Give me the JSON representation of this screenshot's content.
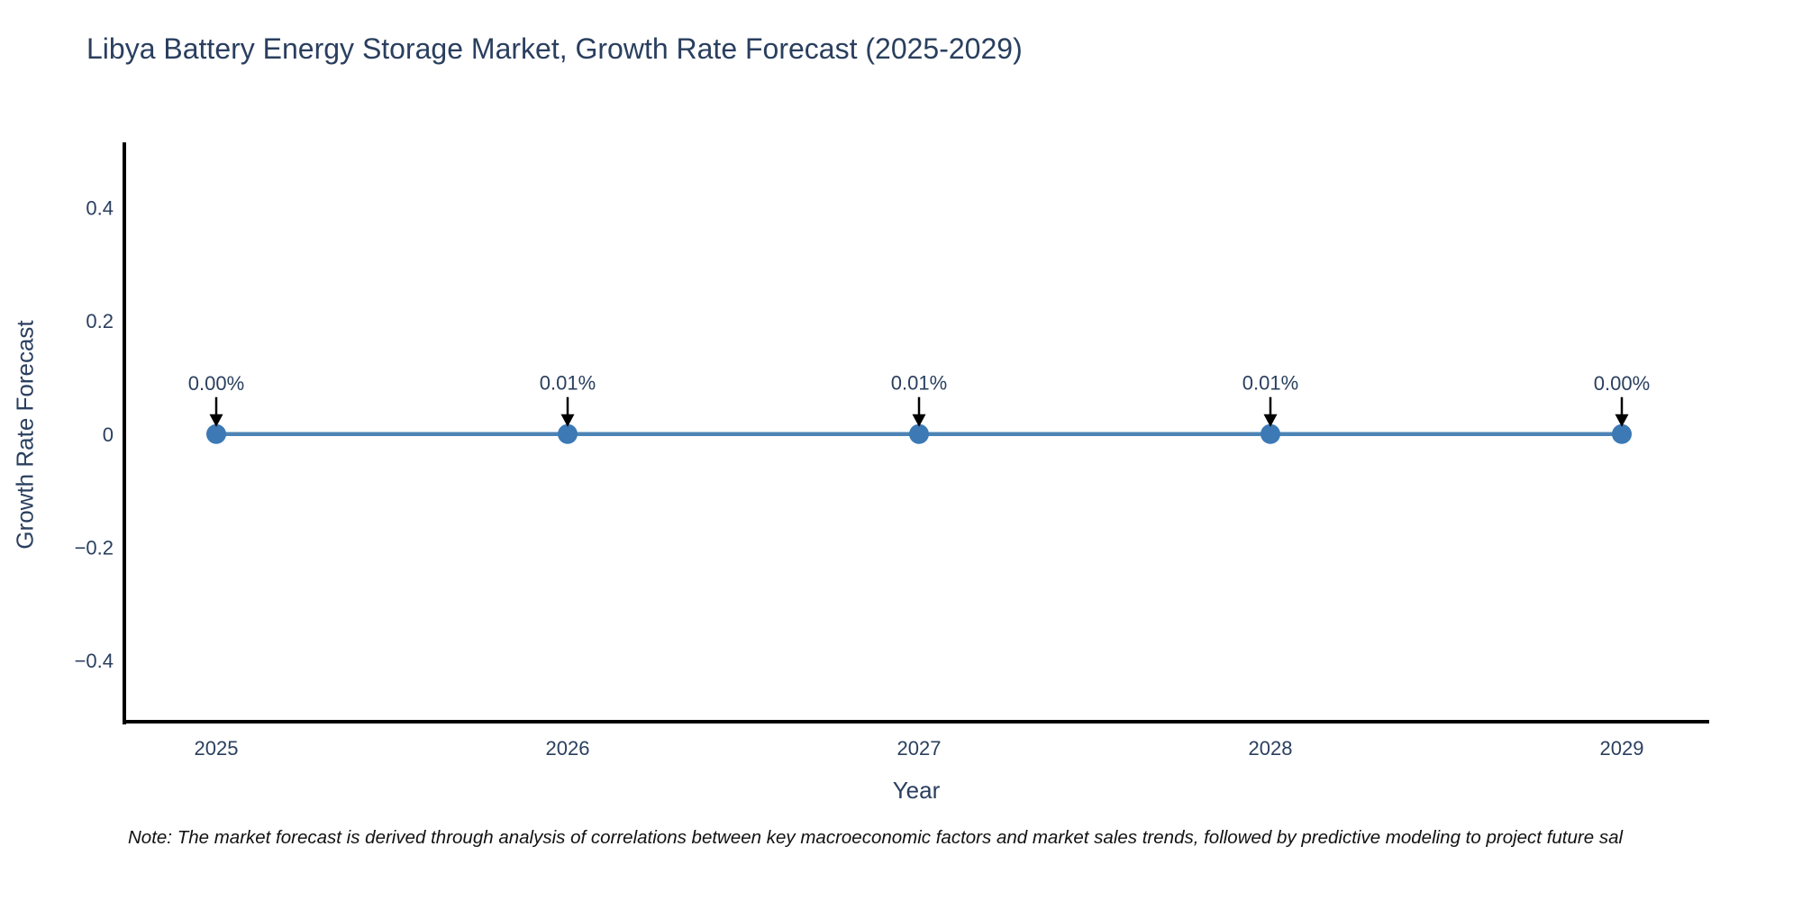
{
  "chart": {
    "title": "Libya Battery Energy Storage Market, Growth Rate Forecast (2025-2029)",
    "note": "Note: The market forecast is derived through analysis of correlations between key macroeconomic factors and market sales trends, followed by predictive modeling to project future sal"
  },
  "chart_data": {
    "type": "line",
    "title": "Libya Battery Energy Storage Market, Growth Rate Forecast (2025-2029)",
    "xlabel": "Year",
    "ylabel": "Growth Rate Forecast",
    "categories": [
      "2025",
      "2026",
      "2027",
      "2028",
      "2029"
    ],
    "series": [
      {
        "name": "Growth Rate Forecast",
        "values": [
          0.0,
          0.0001,
          0.0001,
          0.0001,
          0.0
        ]
      }
    ],
    "point_labels": [
      "0.00%",
      "0.01%",
      "0.01%",
      "0.01%",
      "0.00%"
    ],
    "ytick_values": [
      0.4,
      0.2,
      0,
      -0.2,
      -0.4
    ],
    "ytick_labels": [
      "0.4",
      "0.2",
      "0",
      "−0.2",
      "−0.4"
    ],
    "ylim": [
      -0.508,
      0.512
    ],
    "grid": false,
    "legend": "none",
    "marker": "circle",
    "annotation_arrow": "down",
    "colors": {
      "line": "#4e84b5",
      "marker": "#3c79b5",
      "axis": "#000000",
      "tick_text": "#2a3f5f",
      "annotation_text": "#2a3f5f",
      "note_text": "#111111"
    }
  }
}
